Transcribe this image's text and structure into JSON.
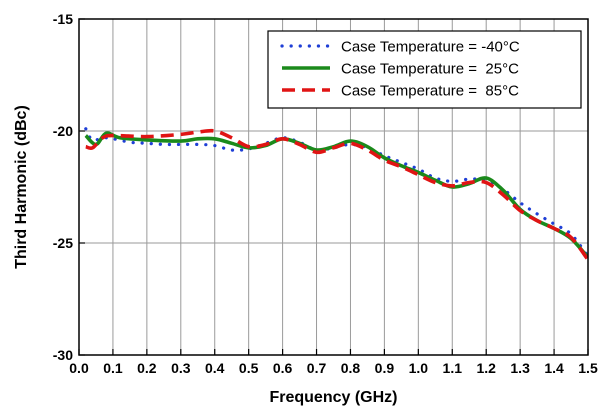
{
  "chart_data": {
    "type": "line",
    "xlabel": "Frequency (GHz)",
    "ylabel": "Third Harmonic (dBc)",
    "xlim": [
      0.0,
      1.5
    ],
    "ylim": [
      -30,
      -15
    ],
    "x_ticks": [
      "0.0",
      "0.1",
      "0.2",
      "0.3",
      "0.4",
      "0.5",
      "0.6",
      "0.7",
      "0.8",
      "0.9",
      "1.0",
      "1.1",
      "1.2",
      "1.3",
      "1.4",
      "1.5"
    ],
    "y_ticks": [
      "-15",
      "-20",
      "-25",
      "-30"
    ],
    "grid": true,
    "legend_position": "top-right",
    "series": [
      {
        "name": "Case Temperature = -40°C",
        "color": "#1f3fd6",
        "style": "dotted",
        "points": [
          [
            0.02,
            -19.9
          ],
          [
            0.04,
            -20.4
          ],
          [
            0.08,
            -20.3
          ],
          [
            0.15,
            -20.5
          ],
          [
            0.2,
            -20.55
          ],
          [
            0.25,
            -20.6
          ],
          [
            0.3,
            -20.6
          ],
          [
            0.35,
            -20.6
          ],
          [
            0.4,
            -20.65
          ],
          [
            0.45,
            -20.85
          ],
          [
            0.5,
            -20.8
          ],
          [
            0.55,
            -20.55
          ],
          [
            0.6,
            -20.3
          ],
          [
            0.65,
            -20.5
          ],
          [
            0.7,
            -20.85
          ],
          [
            0.75,
            -20.75
          ],
          [
            0.8,
            -20.6
          ],
          [
            0.85,
            -20.75
          ],
          [
            0.9,
            -21.1
          ],
          [
            0.95,
            -21.4
          ],
          [
            1.0,
            -21.7
          ],
          [
            1.05,
            -22.1
          ],
          [
            1.1,
            -22.25
          ],
          [
            1.15,
            -22.15
          ],
          [
            1.2,
            -22.2
          ],
          [
            1.25,
            -22.6
          ],
          [
            1.3,
            -23.2
          ],
          [
            1.35,
            -23.7
          ],
          [
            1.4,
            -24.15
          ],
          [
            1.45,
            -24.6
          ],
          [
            1.5,
            -25.6
          ]
        ]
      },
      {
        "name": "Case Temperature =  25°C",
        "color": "#1b8a1b",
        "style": "solid",
        "points": [
          [
            0.02,
            -20.2
          ],
          [
            0.05,
            -20.6
          ],
          [
            0.08,
            -20.1
          ],
          [
            0.12,
            -20.3
          ],
          [
            0.2,
            -20.4
          ],
          [
            0.3,
            -20.45
          ],
          [
            0.35,
            -20.35
          ],
          [
            0.4,
            -20.35
          ],
          [
            0.45,
            -20.55
          ],
          [
            0.5,
            -20.75
          ],
          [
            0.55,
            -20.65
          ],
          [
            0.6,
            -20.35
          ],
          [
            0.65,
            -20.55
          ],
          [
            0.7,
            -20.85
          ],
          [
            0.75,
            -20.7
          ],
          [
            0.8,
            -20.45
          ],
          [
            0.85,
            -20.7
          ],
          [
            0.9,
            -21.2
          ],
          [
            0.95,
            -21.55
          ],
          [
            1.0,
            -21.85
          ],
          [
            1.05,
            -22.2
          ],
          [
            1.1,
            -22.5
          ],
          [
            1.15,
            -22.35
          ],
          [
            1.2,
            -22.1
          ],
          [
            1.25,
            -22.65
          ],
          [
            1.3,
            -23.5
          ],
          [
            1.35,
            -24.0
          ],
          [
            1.4,
            -24.35
          ],
          [
            1.45,
            -24.8
          ],
          [
            1.5,
            -25.65
          ]
        ]
      },
      {
        "name": "Case Temperature =  85°C",
        "color": "#e01414",
        "style": "dashed",
        "points": [
          [
            0.02,
            -20.7
          ],
          [
            0.04,
            -20.75
          ],
          [
            0.07,
            -20.3
          ],
          [
            0.1,
            -20.2
          ],
          [
            0.2,
            -20.25
          ],
          [
            0.3,
            -20.15
          ],
          [
            0.35,
            -20.05
          ],
          [
            0.4,
            -20.0
          ],
          [
            0.45,
            -20.3
          ],
          [
            0.5,
            -20.7
          ],
          [
            0.55,
            -20.6
          ],
          [
            0.6,
            -20.35
          ],
          [
            0.65,
            -20.6
          ],
          [
            0.7,
            -20.95
          ],
          [
            0.75,
            -20.75
          ],
          [
            0.8,
            -20.55
          ],
          [
            0.85,
            -20.85
          ],
          [
            0.9,
            -21.3
          ],
          [
            0.95,
            -21.6
          ],
          [
            1.0,
            -21.95
          ],
          [
            1.05,
            -22.3
          ],
          [
            1.1,
            -22.45
          ],
          [
            1.15,
            -22.3
          ],
          [
            1.2,
            -22.3
          ],
          [
            1.25,
            -22.85
          ],
          [
            1.3,
            -23.55
          ],
          [
            1.35,
            -24.0
          ],
          [
            1.4,
            -24.35
          ],
          [
            1.45,
            -24.75
          ],
          [
            1.5,
            -25.75
          ]
        ]
      }
    ]
  }
}
